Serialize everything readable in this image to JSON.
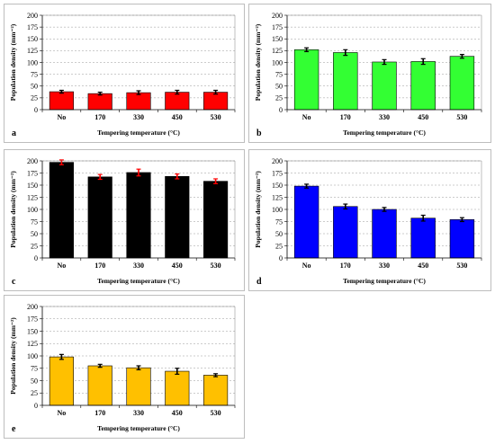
{
  "chart_data": [
    {
      "type": "bar",
      "panel_label": "a",
      "categories": [
        "No",
        "170",
        "330",
        "450",
        "530"
      ],
      "values": [
        38,
        34,
        36,
        37,
        37
      ],
      "errors": [
        3,
        3,
        4,
        4,
        4
      ],
      "bar_color": "#ff0000",
      "error_color": "#000000",
      "xlabel": "Tempering temperature (°C)",
      "ylabel": "Population density (mm⁻²)",
      "ylim": [
        0,
        200
      ],
      "yticks": [
        0,
        25,
        50,
        75,
        100,
        125,
        150,
        175,
        200
      ],
      "grid": true
    },
    {
      "type": "bar",
      "panel_label": "b",
      "categories": [
        "No",
        "170",
        "330",
        "450",
        "530"
      ],
      "values": [
        127,
        121,
        101,
        102,
        113
      ],
      "errors": [
        4,
        6,
        5,
        6,
        4
      ],
      "bar_color": "#33ff33",
      "error_color": "#000000",
      "xlabel": "Tempering temperature (°C)",
      "ylabel": "Population density (mm⁻²)",
      "ylim": [
        0,
        200
      ],
      "yticks": [
        0,
        25,
        50,
        75,
        100,
        125,
        150,
        175,
        200
      ],
      "grid": true
    },
    {
      "type": "bar",
      "panel_label": "c",
      "categories": [
        "No",
        "170",
        "330",
        "450",
        "530"
      ],
      "values": [
        197,
        167,
        176,
        168,
        158
      ],
      "errors": [
        5,
        5,
        7,
        5,
        5
      ],
      "bar_color": "#000000",
      "error_color": "#ff0000",
      "xlabel": "Tempering temperature (°C)",
      "ylabel": "Population density (mm⁻²)",
      "ylim": [
        0,
        200
      ],
      "yticks": [
        0,
        25,
        50,
        75,
        100,
        125,
        150,
        175,
        200
      ],
      "grid": true
    },
    {
      "type": "bar",
      "panel_label": "d",
      "categories": [
        "No",
        "170",
        "330",
        "450",
        "530"
      ],
      "values": [
        148,
        106,
        100,
        82,
        79
      ],
      "errors": [
        4,
        5,
        4,
        6,
        4
      ],
      "bar_color": "#0000ff",
      "error_color": "#000000",
      "xlabel": "Tempering temperature (°C)",
      "ylabel": "Population density (mm⁻²)",
      "ylim": [
        0,
        200
      ],
      "yticks": [
        0,
        25,
        50,
        75,
        100,
        125,
        150,
        175,
        200
      ],
      "grid": true
    },
    {
      "type": "bar",
      "panel_label": "e",
      "categories": [
        "No",
        "170",
        "330",
        "450",
        "530"
      ],
      "values": [
        98,
        80,
        76,
        69,
        61
      ],
      "errors": [
        5,
        3,
        4,
        6,
        3
      ],
      "bar_color": "#ffc000",
      "error_color": "#000000",
      "xlabel": "Tempering temperature (°C)",
      "ylabel": "Population density (mm⁻²)",
      "ylim": [
        0,
        200
      ],
      "yticks": [
        0,
        25,
        50,
        75,
        100,
        125,
        150,
        175,
        200
      ],
      "grid": true
    }
  ]
}
